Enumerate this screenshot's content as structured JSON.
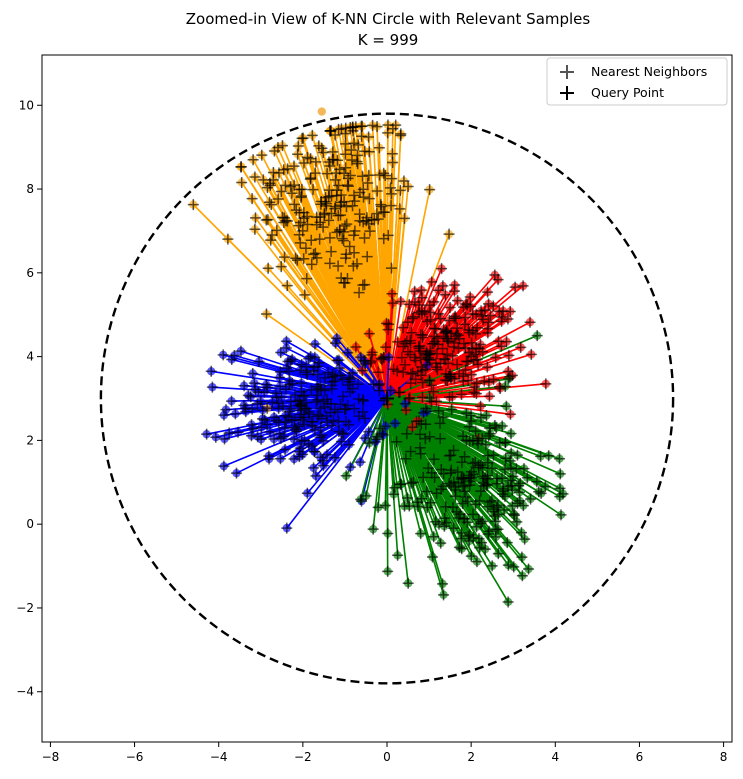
{
  "chart_data": {
    "type": "scatter",
    "title": "Zoomed-in View of K-NN Circle with Relevant Samples",
    "subtitle": "K = 999",
    "xlabel": "",
    "ylabel": "",
    "xlim": [
      -8.2,
      8.2
    ],
    "ylim": [
      -5.2,
      11.2
    ],
    "xticks": [
      -8,
      -6,
      -4,
      -2,
      0,
      2,
      4,
      6,
      8
    ],
    "xtick_labels": [
      "−8",
      "−6",
      "−4",
      "−2",
      "0",
      "2",
      "4",
      "6",
      "8"
    ],
    "yticks": [
      -4,
      -2,
      0,
      2,
      4,
      6,
      8,
      10
    ],
    "ytick_labels": [
      "−4",
      "−2",
      "0",
      "2",
      "4",
      "6",
      "8",
      "10"
    ],
    "grid": false,
    "legend_position": "top-right",
    "legend": [
      {
        "label": "Nearest Neighbors",
        "marker": "plus",
        "color": "#555555"
      },
      {
        "label": "Query Point",
        "marker": "plus",
        "color": "#000000"
      }
    ],
    "query_point": {
      "x": 0,
      "y": 3
    },
    "knn_circle": {
      "center": [
        0,
        3
      ],
      "radius": 6.8,
      "style": "dashed",
      "color": "#000000"
    },
    "outlier": {
      "x": -1.55,
      "y": 9.85,
      "color": "#f0a020"
    },
    "clusters": [
      {
        "color": "#ffa500",
        "center": [
          -1.3,
          7.8
        ],
        "spread": [
          1.0,
          1.2
        ],
        "count": 250
      },
      {
        "color": "#ff0000",
        "center": [
          1.4,
          4.2
        ],
        "spread": [
          0.85,
          0.75
        ],
        "count": 250
      },
      {
        "color": "#0000ff",
        "center": [
          -1.9,
          2.8
        ],
        "spread": [
          0.95,
          0.75
        ],
        "count": 250
      },
      {
        "color": "#008000",
        "center": [
          2.0,
          0.9
        ],
        "spread": [
          0.95,
          1.05
        ],
        "count": 249
      }
    ]
  }
}
